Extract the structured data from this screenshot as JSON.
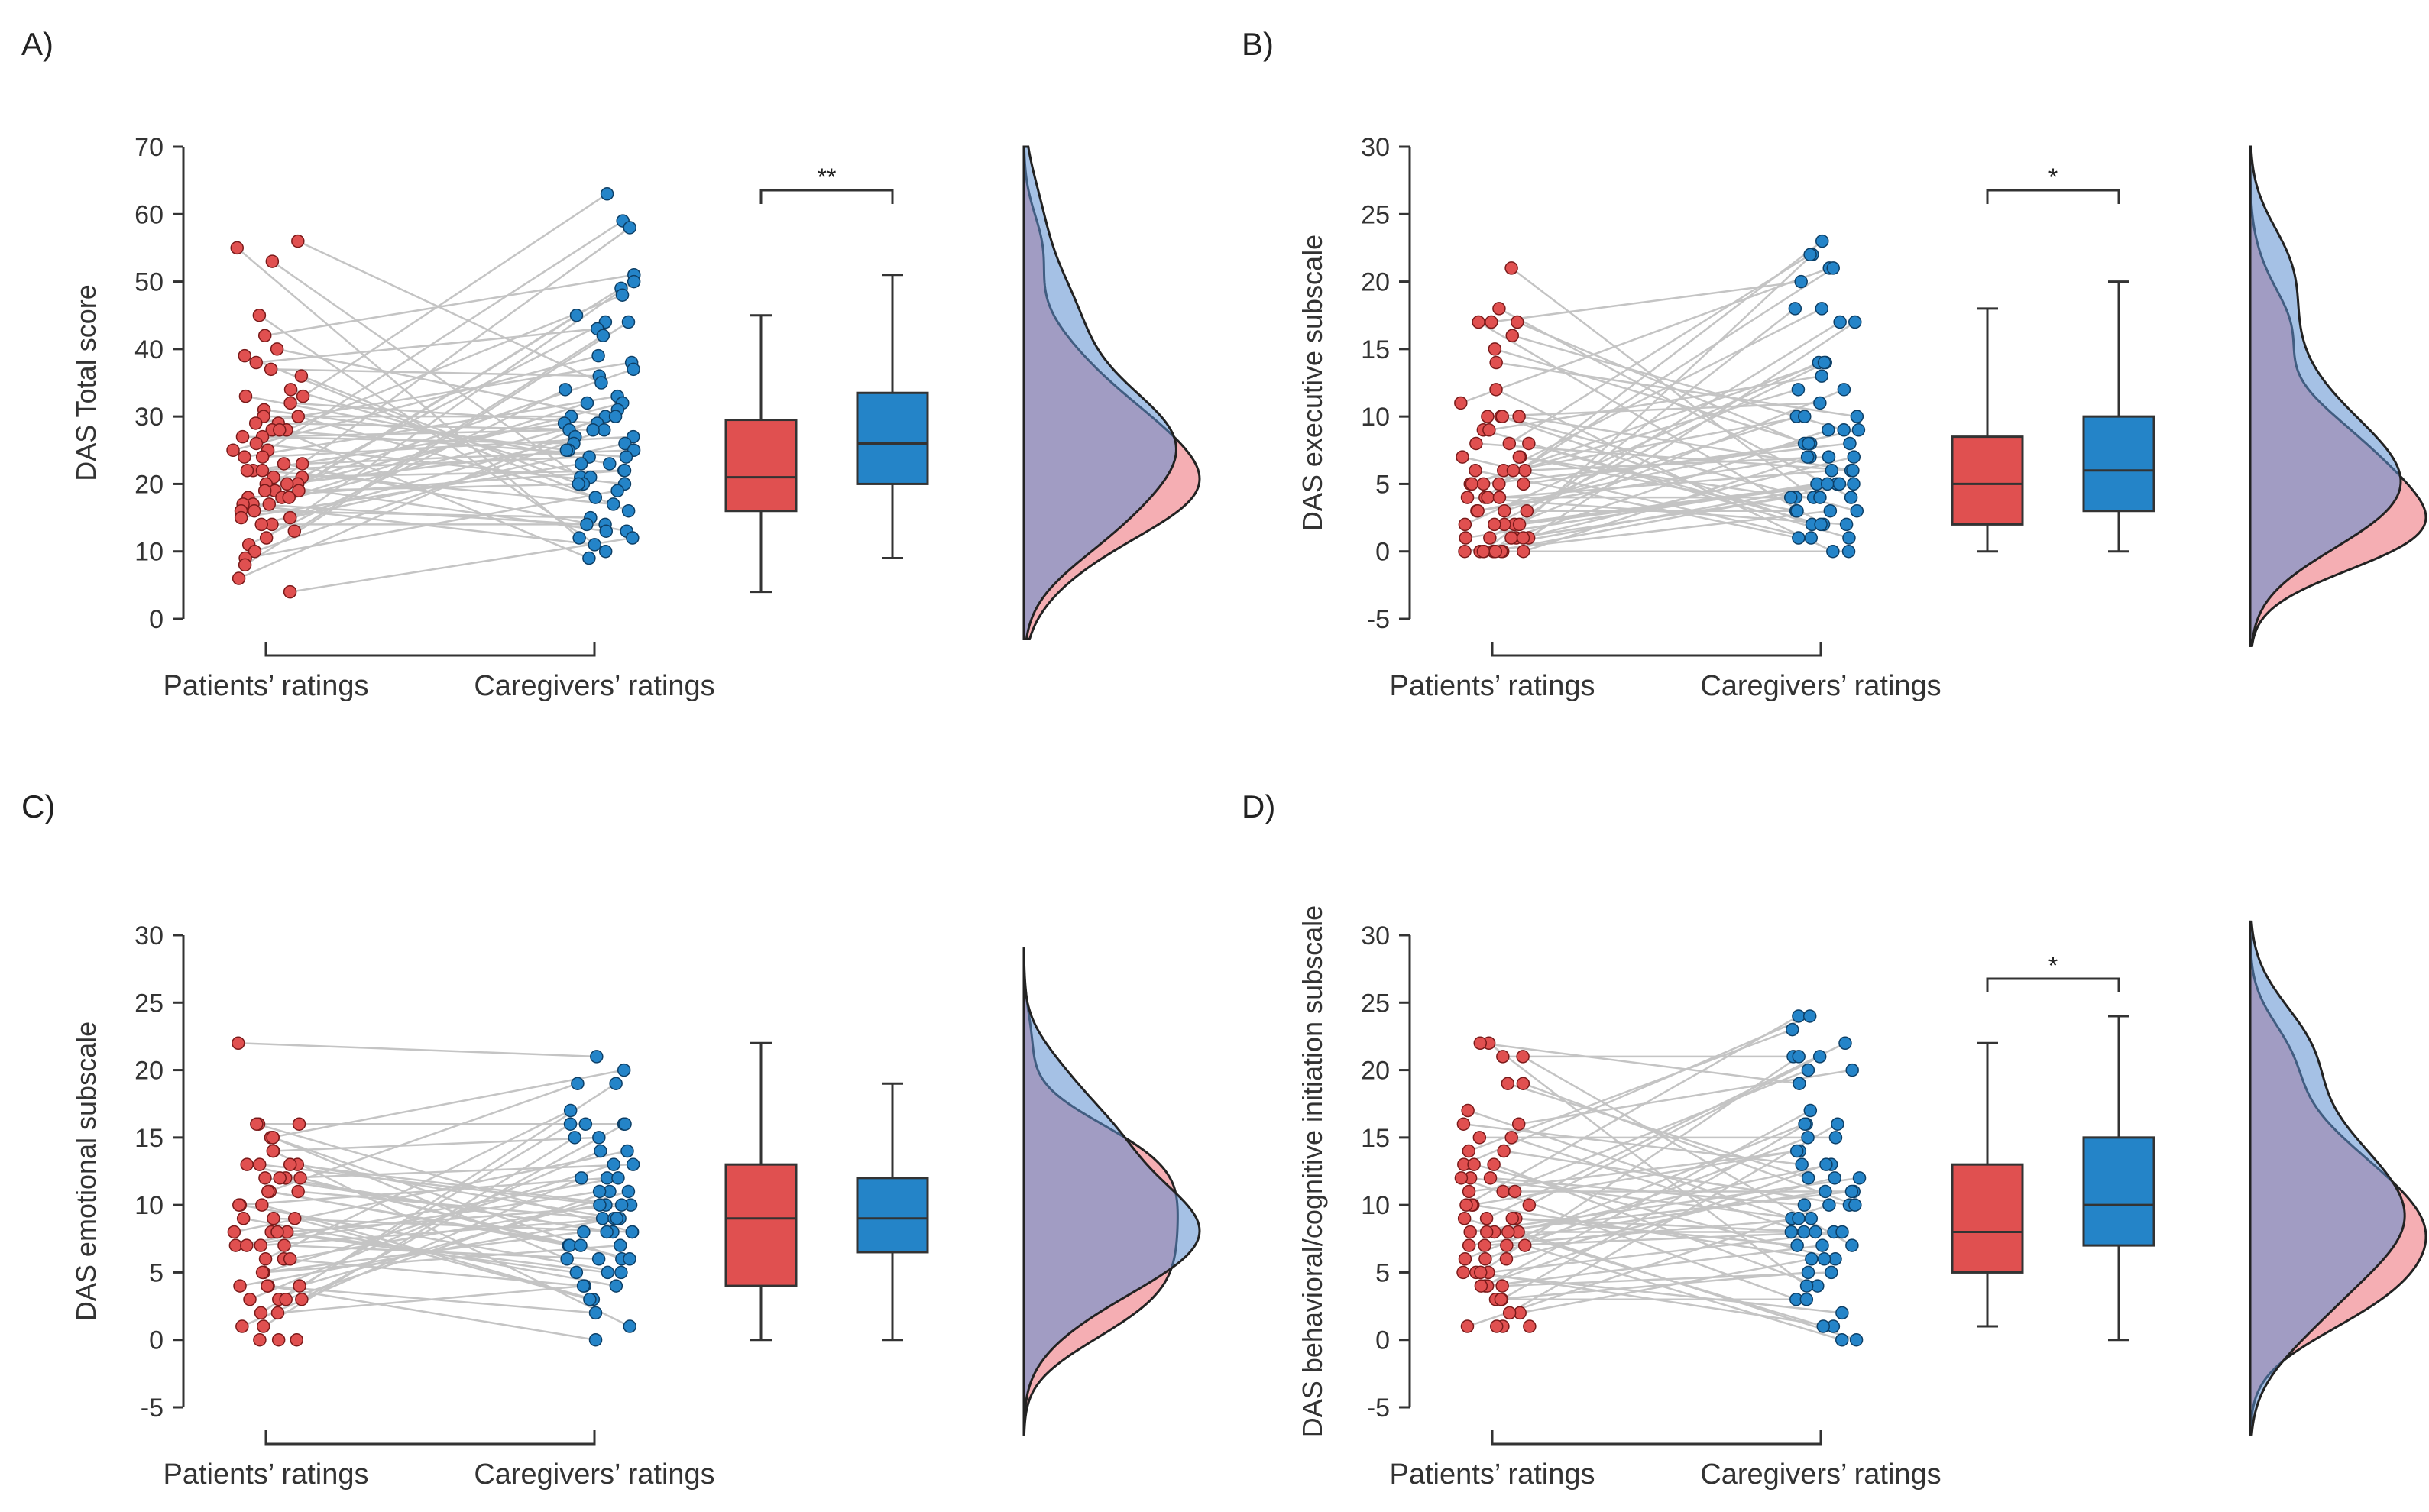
{
  "figure": {
    "categories": [
      "Patients’ ratings",
      "Caregivers’ ratings"
    ],
    "colors": {
      "patients": "#e05050",
      "caregivers": "#2484c8",
      "patients_density": "#f3a0a6",
      "caregivers_density": "#8fb8e2",
      "overlap": "#9690b6"
    }
  },
  "chart_data": [
    {
      "type": "raincloud",
      "panel_label": "A)",
      "ylabel": "DAS Total score",
      "yticks": [
        0,
        10,
        20,
        30,
        40,
        50,
        60,
        70
      ],
      "ylim": [
        0,
        70
      ],
      "categories": [
        "Patients’ ratings",
        "Caregivers’ ratings"
      ],
      "significance": "**",
      "patients": [
        56,
        55,
        53,
        45,
        42,
        40,
        39,
        38,
        37,
        36,
        34,
        33,
        33,
        32,
        31,
        30,
        30,
        29,
        29,
        28,
        28,
        28,
        27,
        27,
        26,
        25,
        25,
        24,
        24,
        23,
        23,
        22,
        22,
        22,
        21,
        21,
        20,
        20,
        20,
        19,
        19,
        19,
        18,
        18,
        18,
        17,
        17,
        17,
        16,
        16,
        15,
        15,
        14,
        14,
        13,
        12,
        11,
        10,
        9,
        8,
        6,
        4
      ],
      "caregivers": [
        63,
        59,
        58,
        51,
        50,
        49,
        48,
        45,
        44,
        44,
        43,
        42,
        39,
        38,
        37,
        36,
        35,
        34,
        33,
        32,
        32,
        31,
        30,
        30,
        30,
        29,
        29,
        28,
        28,
        28,
        27,
        27,
        26,
        26,
        25,
        25,
        25,
        24,
        24,
        23,
        23,
        22,
        22,
        21,
        21,
        20,
        20,
        20,
        19,
        18,
        17,
        16,
        15,
        14,
        14,
        13,
        13,
        12,
        12,
        11,
        10,
        9
      ],
      "box": {
        "patients": {
          "min": 4,
          "q1": 16,
          "median": 21,
          "q3": 29.5,
          "max": 45
        },
        "caregivers": {
          "min": 9,
          "q1": 20,
          "median": 26,
          "q3": 33.5,
          "max": 51
        }
      }
    },
    {
      "type": "raincloud",
      "panel_label": "B)",
      "ylabel": "DAS executive subscale",
      "yticks": [
        -5,
        0,
        5,
        10,
        15,
        20,
        25,
        30
      ],
      "ylim": [
        -5,
        30
      ],
      "categories": [
        "Patients’ ratings",
        "Caregivers’ ratings"
      ],
      "significance": "*",
      "patients": [
        21,
        18,
        17,
        17,
        17,
        16,
        15,
        14,
        12,
        11,
        10,
        10,
        10,
        10,
        9,
        9,
        8,
        8,
        8,
        7,
        7,
        7,
        6,
        6,
        6,
        6,
        5,
        5,
        5,
        5,
        5,
        4,
        4,
        4,
        4,
        3,
        3,
        3,
        3,
        2,
        2,
        2,
        2,
        2,
        1,
        1,
        1,
        1,
        1,
        1,
        0,
        0,
        0,
        0,
        0,
        0,
        0,
        0,
        0,
        0
      ],
      "caregivers": [
        23,
        22,
        22,
        21,
        21,
        20,
        18,
        18,
        17,
        17,
        14,
        14,
        14,
        13,
        12,
        12,
        11,
        10,
        10,
        10,
        9,
        9,
        9,
        8,
        8,
        8,
        8,
        7,
        7,
        7,
        7,
        6,
        6,
        6,
        5,
        5,
        5,
        5,
        5,
        4,
        4,
        4,
        4,
        4,
        3,
        3,
        3,
        3,
        2,
        2,
        2,
        2,
        1,
        1,
        1,
        0,
        0
      ],
      "box": {
        "patients": {
          "min": 0,
          "q1": 2,
          "median": 5,
          "q3": 8.5,
          "max": 18
        },
        "caregivers": {
          "min": 0,
          "q1": 3,
          "median": 6,
          "q3": 10,
          "max": 20
        }
      }
    },
    {
      "type": "raincloud",
      "panel_label": "C)",
      "ylabel": "DAS emotional subscale",
      "yticks": [
        -5,
        0,
        5,
        10,
        15,
        20,
        25,
        30
      ],
      "ylim": [
        -5,
        30
      ],
      "categories": [
        "Patients’ ratings",
        "Caregivers’ ratings"
      ],
      "significance": "",
      "patients": [
        22,
        16,
        16,
        16,
        15,
        15,
        15,
        14,
        14,
        13,
        13,
        13,
        13,
        12,
        12,
        12,
        12,
        11,
        11,
        11,
        11,
        10,
        10,
        10,
        9,
        9,
        9,
        8,
        8,
        8,
        8,
        7,
        7,
        7,
        7,
        6,
        6,
        6,
        5,
        5,
        5,
        4,
        4,
        4,
        4,
        3,
        3,
        3,
        3,
        2,
        2,
        1,
        1,
        0,
        0,
        0
      ],
      "caregivers": [
        21,
        20,
        19,
        19,
        17,
        16,
        16,
        16,
        16,
        15,
        15,
        14,
        14,
        13,
        13,
        12,
        12,
        12,
        11,
        11,
        11,
        10,
        10,
        10,
        10,
        9,
        9,
        9,
        9,
        8,
        8,
        8,
        8,
        8,
        7,
        7,
        7,
        7,
        6,
        6,
        6,
        6,
        5,
        5,
        5,
        4,
        4,
        4,
        3,
        3,
        2,
        1,
        0
      ],
      "box": {
        "patients": {
          "min": 0,
          "q1": 4,
          "median": 9,
          "q3": 13,
          "max": 22
        },
        "caregivers": {
          "min": 0,
          "q1": 6.5,
          "median": 9,
          "q3": 12,
          "max": 19
        }
      }
    },
    {
      "type": "raincloud",
      "panel_label": "D)",
      "ylabel": "DAS behavioral/cognitive initiation subscale",
      "yticks": [
        -5,
        0,
        5,
        10,
        15,
        20,
        25,
        30
      ],
      "ylim": [
        -5,
        30
      ],
      "categories": [
        "Patients’ ratings",
        "Caregivers’ ratings"
      ],
      "significance": "*",
      "patients": [
        22,
        22,
        21,
        21,
        19,
        19,
        17,
        16,
        16,
        15,
        15,
        14,
        14,
        13,
        13,
        13,
        12,
        12,
        12,
        11,
        11,
        11,
        10,
        10,
        10,
        10,
        9,
        9,
        9,
        9,
        8,
        8,
        8,
        8,
        8,
        7,
        7,
        7,
        7,
        6,
        6,
        6,
        5,
        5,
        5,
        5,
        4,
        4,
        4,
        4,
        3,
        3,
        3,
        2,
        2,
        1,
        1,
        1,
        1
      ],
      "caregivers": [
        24,
        24,
        23,
        22,
        21,
        21,
        21,
        20,
        20,
        19,
        17,
        16,
        16,
        16,
        15,
        15,
        14,
        14,
        13,
        13,
        13,
        12,
        12,
        12,
        11,
        11,
        11,
        10,
        10,
        10,
        10,
        9,
        9,
        9,
        8,
        8,
        8,
        8,
        8,
        7,
        7,
        7,
        6,
        6,
        6,
        5,
        5,
        4,
        4,
        3,
        3,
        2,
        1,
        1,
        0,
        0
      ],
      "box": {
        "patients": {
          "min": 1,
          "q1": 5,
          "median": 8,
          "q3": 13,
          "max": 22
        },
        "caregivers": {
          "min": 0,
          "q1": 7,
          "median": 10,
          "q3": 15,
          "max": 24
        }
      }
    }
  ]
}
